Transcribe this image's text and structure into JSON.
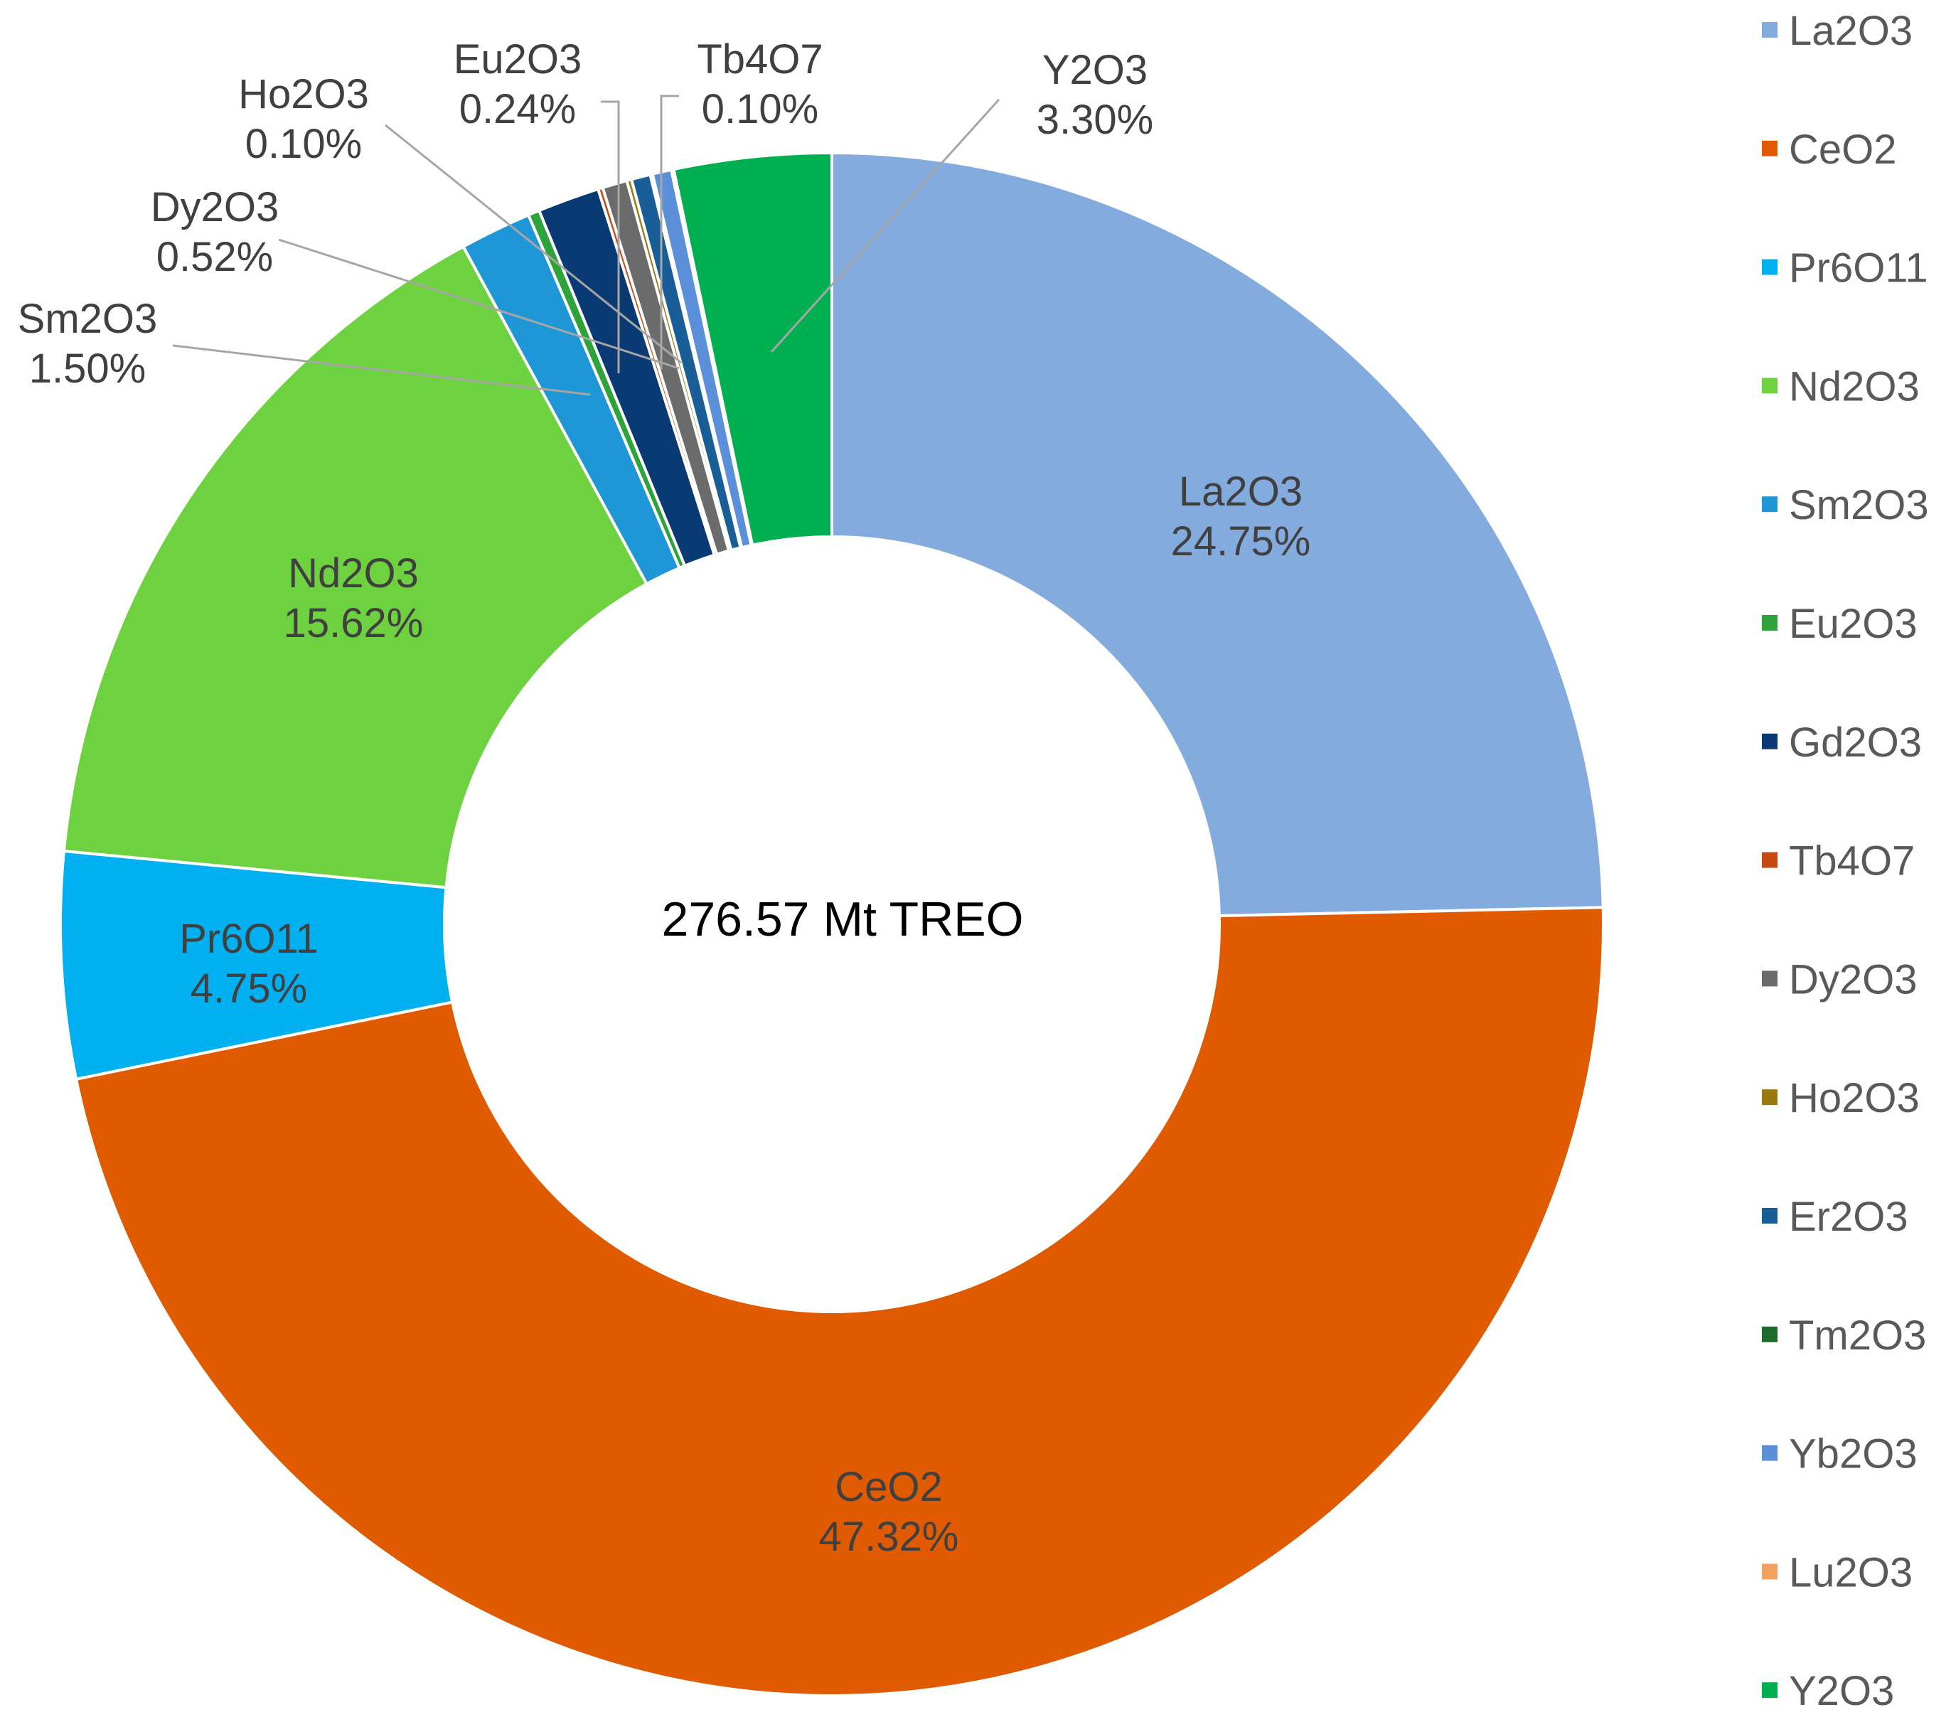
{
  "chart_data": {
    "type": "pie",
    "variant": "donut",
    "center_label": "276.57 Mt TREO",
    "legend_position": "right",
    "slices": [
      {
        "name": "La2O3",
        "value": 24.75,
        "color": "#84ABDE",
        "label": "24.75%",
        "label_style": "inside"
      },
      {
        "name": "CeO2",
        "value": 47.32,
        "color": "#E05A00",
        "label": "47.32%",
        "label_style": "inside"
      },
      {
        "name": "Pr6O11",
        "value": 4.75,
        "color": "#00B0F0",
        "label": "4.75%",
        "label_style": "inside"
      },
      {
        "name": "Nd2O3",
        "value": 15.62,
        "color": "#6ED240",
        "label": "15.62%",
        "label_style": "inside"
      },
      {
        "name": "Sm2O3",
        "value": 1.5,
        "color": "#1F97D7",
        "label": "1.50%",
        "label_style": "callout"
      },
      {
        "name": "Eu2O3",
        "value": 0.24,
        "color": "#2EA33C",
        "label": "0.24%",
        "label_style": "callout"
      },
      {
        "name": "Gd2O3",
        "value": 1.3,
        "color": "#0A3A73",
        "label": "",
        "label_style": "none"
      },
      {
        "name": "Tb4O7",
        "value": 0.1,
        "color": "#C44A12",
        "label": "0.10%",
        "label_style": "callout"
      },
      {
        "name": "Dy2O3",
        "value": 0.52,
        "color": "#6B6B6B",
        "label": "0.52%",
        "label_style": "callout"
      },
      {
        "name": "Ho2O3",
        "value": 0.1,
        "color": "#9A7A10",
        "label": "0.10%",
        "label_style": "callout"
      },
      {
        "name": "Er2O3",
        "value": 0.4,
        "color": "#1A5E98",
        "label": "",
        "label_style": "none"
      },
      {
        "name": "Tm2O3",
        "value": 0.05,
        "color": "#1E6B2A",
        "label": "",
        "label_style": "none"
      },
      {
        "name": "Yb2O3",
        "value": 0.4,
        "color": "#5B8FD9",
        "label": "",
        "label_style": "none"
      },
      {
        "name": "Lu2O3",
        "value": 0.05,
        "color": "#F4A262",
        "label": "",
        "label_style": "none"
      },
      {
        "name": "Y2O3",
        "value": 3.3,
        "color": "#00B050",
        "label": "3.30%",
        "label_style": "callout"
      }
    ]
  }
}
